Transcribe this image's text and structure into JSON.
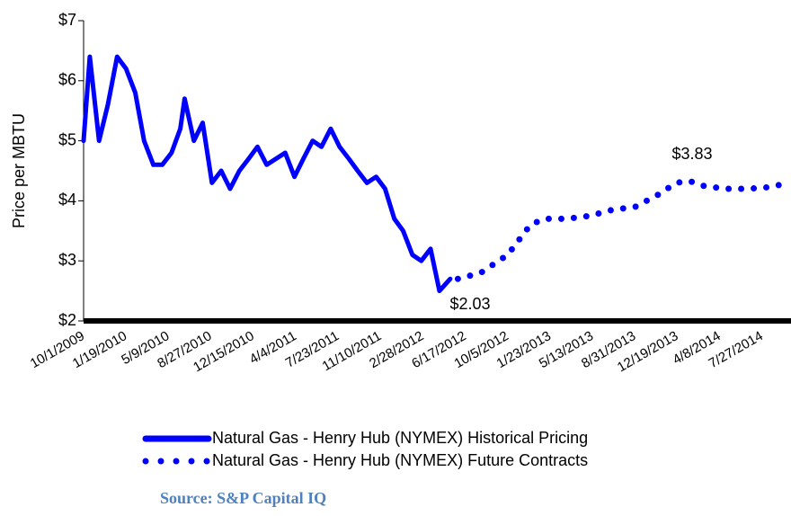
{
  "chart_data": {
    "type": "line",
    "y_label": "Price per MBTU",
    "ylim": [
      2,
      7
    ],
    "yticks": [
      {
        "value": 2,
        "label": "$2"
      },
      {
        "value": 3,
        "label": "$3"
      },
      {
        "value": 4,
        "label": "$4"
      },
      {
        "value": 5,
        "label": "$5"
      },
      {
        "value": 6,
        "label": "$6"
      },
      {
        "value": 7,
        "label": "$7"
      }
    ],
    "xlim": [
      "10/1/2009",
      "10/10/2014"
    ],
    "xticks": [
      "10/1/2009",
      "1/19/2010",
      "5/9/2010",
      "8/27/2010",
      "12/15/2010",
      "4/4/2011",
      "7/23/2011",
      "11/10/2011",
      "2/28/2012",
      "6/17/2012",
      "10/5/2012",
      "1/23/2013",
      "5/13/2013",
      "8/31/2013",
      "12/19/2013",
      "4/8/2014",
      "7/27/2014"
    ],
    "series": [
      {
        "name": "Natural Gas - Henry Hub (NYMEX) Historical Pricing",
        "color": "#0000ff",
        "style": "solid",
        "x": [
          "10/1/2009",
          "10/17/2009",
          "11/10/2009",
          "12/3/2009",
          "12/27/2009",
          "1/19/2010",
          "2/12/2010",
          "3/7/2010",
          "3/31/2010",
          "4/23/2010",
          "5/17/2010",
          "6/9/2010",
          "6/20/2010",
          "7/14/2010",
          "8/6/2010",
          "8/30/2010",
          "9/23/2010",
          "10/16/2010",
          "11/9/2010",
          "12/3/2010",
          "12/26/2010",
          "1/19/2011",
          "2/12/2011",
          "3/8/2011",
          "4/1/2011",
          "4/24/2011",
          "5/18/2011",
          "6/10/2011",
          "7/4/2011",
          "7/27/2011",
          "8/20/2011",
          "9/12/2011",
          "10/6/2011",
          "10/30/2011",
          "11/22/2011",
          "12/16/2011",
          "1/8/2012",
          "2/1/2012",
          "2/24/2012",
          "3/19/2012",
          "4/11/2012",
          "5/9/2012"
        ],
        "values": [
          5.0,
          6.4,
          5.0,
          5.6,
          6.4,
          6.2,
          5.8,
          5.0,
          4.6,
          4.6,
          4.8,
          5.2,
          5.7,
          5.0,
          5.3,
          4.3,
          4.5,
          4.2,
          4.5,
          4.7,
          4.9,
          4.6,
          4.7,
          4.8,
          4.4,
          4.7,
          5.0,
          4.9,
          5.2,
          4.9,
          4.7,
          4.5,
          4.3,
          4.4,
          4.2,
          3.7,
          3.5,
          3.1,
          3.0,
          3.2,
          2.5,
          2.7
        ]
      },
      {
        "name": "Natural Gas - Henry Hub (NYMEX) Future Contracts",
        "color": "#0000ff",
        "style": "dotted",
        "x": [
          "5/29/2012",
          "7/27/2012",
          "10/5/2012",
          "12/3/2012",
          "1/8/2013",
          "3/8/2013",
          "5/6/2013",
          "7/4/2013",
          "9/1/2013",
          "10/30/2013",
          "12/16/2013",
          "1/20/2014",
          "2/24/2014",
          "4/24/2014",
          "6/22/2014",
          "8/20/2014",
          "10/1/2014"
        ],
        "values": [
          2.7,
          2.8,
          3.1,
          3.6,
          3.7,
          3.7,
          3.75,
          3.85,
          3.9,
          4.1,
          4.3,
          4.33,
          4.25,
          4.2,
          4.2,
          4.23,
          4.3
        ]
      }
    ],
    "annotations": [
      "$2.03",
      "$3.83"
    ],
    "source": "Source: S&P Capital IQ",
    "legend": "bottom"
  }
}
